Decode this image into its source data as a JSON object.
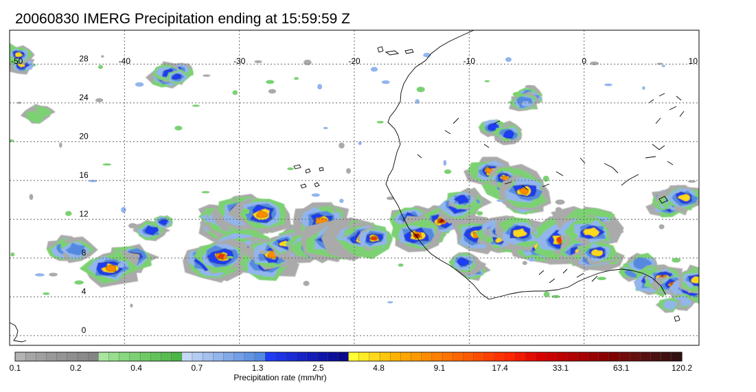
{
  "title": "20060830 IMERG Precipitation ending at 15:59:59 Z",
  "map": {
    "lon_range": [
      -50,
      10
    ],
    "lat_range": [
      -1,
      31.5
    ],
    "lon_ticks": [
      "-50",
      "-40",
      "-30",
      "-20",
      "-10",
      "0",
      "10"
    ],
    "lat_ticks": [
      "28",
      "24",
      "20",
      "16",
      "12",
      "8",
      "4",
      "0"
    ],
    "grid_style": "dotted",
    "grid": true
  },
  "colorbar": {
    "title": "Precipitation rate (mm/hr)",
    "labels": [
      "0.1",
      "0.2",
      "0.4",
      "0.7",
      "1.3",
      "2.5",
      "4.8",
      "9.1",
      "17.4",
      "33.1",
      "63.1",
      "120.2"
    ],
    "colors": [
      "#b3b3b3",
      "#a6a6a6",
      "#a0a0a0",
      "#999999",
      "#949494",
      "#8f8f8f",
      "#8a8a8a",
      "#858585",
      "#a8e6a0",
      "#97df8e",
      "#88d87f",
      "#7bd172",
      "#6fca66",
      "#63c35b",
      "#58bc51",
      "#4cb547",
      "#c5d8f5",
      "#b4ccf2",
      "#a3c0ef",
      "#92b5ec",
      "#82aae9",
      "#729fe6",
      "#6394e3",
      "#5489e0",
      "#1f3cf5",
      "#1c33e6",
      "#192bd7",
      "#1623c8",
      "#131cb9",
      "#1015aa",
      "#0d0f9b",
      "#0a098c",
      "#ffff33",
      "#ffec26",
      "#ffd91a",
      "#ffc60d",
      "#ffb300",
      "#ffa600",
      "#ff9900",
      "#ff8c00",
      "#ff7f00",
      "#ff7300",
      "#ff6600",
      "#ff5a00",
      "#ff4d00",
      "#ff4000",
      "#ff3300",
      "#ff2600",
      "#f21a00",
      "#e50d00",
      "#d90000",
      "#cc0000",
      "#bf0000",
      "#b30000",
      "#a60000",
      "#990000",
      "#8c0000",
      "#800000",
      "#730a0a",
      "#661010",
      "#591010",
      "#4d1010",
      "#401010",
      "#331010"
    ]
  },
  "precip_cells": [
    {
      "lon": -49.7,
      "lat": 28.5,
      "peak": 8.0
    },
    {
      "lon": -35.5,
      "lat": 27.0,
      "peak": 3.0
    },
    {
      "lon": -47.5,
      "lat": 23.0,
      "peak": 0.7
    },
    {
      "lon": -44.5,
      "lat": 8.7,
      "peak": 2.5
    },
    {
      "lon": -39.8,
      "lat": 7.6,
      "peak": 20.0
    },
    {
      "lon": -37.0,
      "lat": 11.3,
      "peak": 3.0
    },
    {
      "lon": -31.6,
      "lat": 11.9,
      "peak": 25.0
    },
    {
      "lon": -28.6,
      "lat": 12.1,
      "peak": 20.0
    },
    {
      "lon": -29.2,
      "lat": 9.1,
      "peak": 60.0
    },
    {
      "lon": -31.3,
      "lat": 7.7,
      "peak": 30.0
    },
    {
      "lon": -27.5,
      "lat": 7.5,
      "peak": 20.0
    },
    {
      "lon": -25.0,
      "lat": 10.0,
      "peak": 10.0
    },
    {
      "lon": -23.0,
      "lat": 11.8,
      "peak": 15.0
    },
    {
      "lon": -22.6,
      "lat": 9.8,
      "peak": 30.0
    },
    {
      "lon": -18.3,
      "lat": 10.4,
      "peak": 40.0
    },
    {
      "lon": -15.1,
      "lat": 12.5,
      "peak": 5.0
    },
    {
      "lon": -13.0,
      "lat": 10.9,
      "peak": 45.0
    },
    {
      "lon": -8.1,
      "lat": 10.4,
      "peak": 15.0
    },
    {
      "lon": -10.8,
      "lat": 13.8,
      "peak": 5.0
    },
    {
      "lon": -10.0,
      "lat": 7.2,
      "peak": 3.0
    },
    {
      "lon": -7.6,
      "lat": 16.5,
      "peak": 15.0
    },
    {
      "lon": -7.1,
      "lat": 21.2,
      "peak": 3.0
    },
    {
      "lon": -5.1,
      "lat": 24.4,
      "peak": 2.0
    },
    {
      "lon": -4.7,
      "lat": 14.2,
      "peak": 15.0
    },
    {
      "lon": -3.5,
      "lat": 9.7,
      "peak": 10.0
    },
    {
      "lon": -6.5,
      "lat": 10.2,
      "peak": 8.0
    },
    {
      "lon": -0.4,
      "lat": 12.0,
      "peak": 10.0
    },
    {
      "lon": -1.3,
      "lat": 10.2,
      "peak": 30.0
    },
    {
      "lon": 1.1,
      "lat": 10.5,
      "peak": 10.0
    },
    {
      "lon": 0.5,
      "lat": 8.0,
      "peak": 6.0
    },
    {
      "lon": 7.7,
      "lat": 14.0,
      "peak": 8.0
    },
    {
      "lon": 4.8,
      "lat": 7.0,
      "peak": 2.0
    },
    {
      "lon": 7.0,
      "lat": 5.4,
      "peak": 25.0
    },
    {
      "lon": 9.1,
      "lat": 5.3,
      "peak": 10.0
    },
    {
      "lon": 8.0,
      "lat": 3.3,
      "peak": 1.0
    }
  ]
}
